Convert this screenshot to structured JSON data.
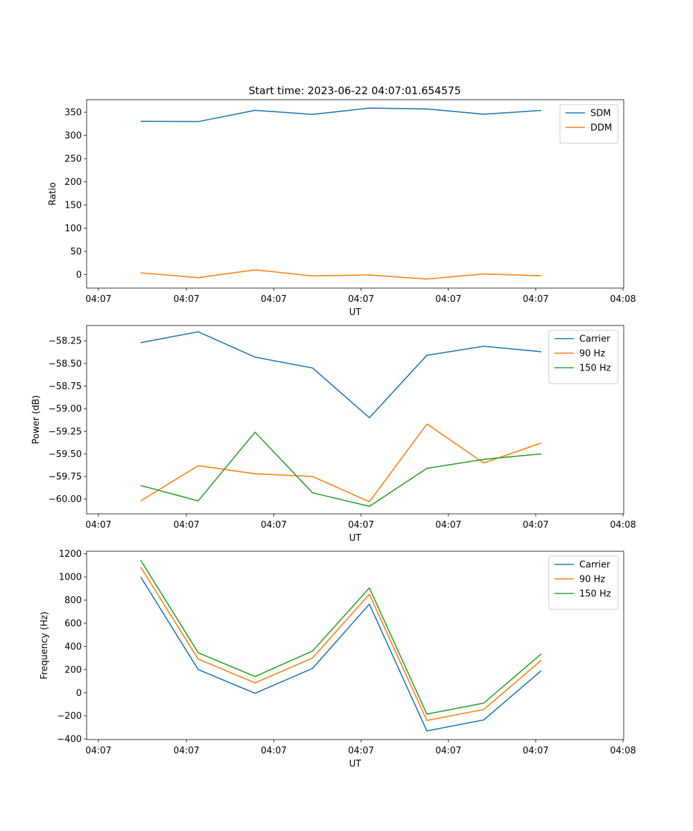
{
  "figure": {
    "title": "Start time: 2023-06-22 04:07:01.654575"
  },
  "colors": {
    "blue": "#1f77b4",
    "orange": "#ff7f0e",
    "green": "#2ca02c"
  },
  "chart_data": [
    {
      "type": "line",
      "title": "Start time: 2023-06-22 04:07:01.654575",
      "xlabel": "UT",
      "ylabel": "Ratio",
      "x_tick_labels": [
        "04:07",
        "04:07",
        "04:07",
        "04:07",
        "04:07",
        "04:07",
        "04:08"
      ],
      "y_ticks": [
        0,
        50,
        100,
        150,
        200,
        250,
        300,
        350
      ],
      "ylim": [
        -29,
        377
      ],
      "legend_position": "top-right",
      "grid": false,
      "series": [
        {
          "name": "SDM",
          "color": "#1f77b4",
          "values": [
            330.5,
            329.8,
            354.2,
            345.4,
            359.0,
            357.2,
            345.8,
            353.8
          ]
        },
        {
          "name": "DDM",
          "color": "#ff7f0e",
          "values": [
            3.8,
            -6.4,
            10.2,
            -2.8,
            -0.8,
            -9.4,
            1.4,
            -2.6
          ]
        }
      ]
    },
    {
      "type": "line",
      "title": "",
      "xlabel": "UT",
      "ylabel": "Power (dB)",
      "x_tick_labels": [
        "04:07",
        "04:07",
        "04:07",
        "04:07",
        "04:07",
        "04:07",
        "04:08"
      ],
      "y_ticks": [
        -60.0,
        -59.75,
        -59.5,
        -59.25,
        -59.0,
        -58.75,
        -58.5,
        -58.25
      ],
      "y_tick_labels": [
        "−60.00",
        "−59.75",
        "−59.50",
        "−59.25",
        "−59.00",
        "−58.75",
        "−58.50",
        "−58.25"
      ],
      "ylim": [
        -60.163,
        -58.08
      ],
      "legend_position": "top-right",
      "grid": false,
      "series": [
        {
          "name": "Carrier",
          "color": "#1f77b4",
          "values": [
            -58.27,
            -58.15,
            -58.43,
            -58.55,
            -59.1,
            -58.41,
            -58.31,
            -58.37
          ]
        },
        {
          "name": "90 Hz",
          "color": "#ff7f0e",
          "values": [
            -60.02,
            -59.63,
            -59.72,
            -59.75,
            -60.03,
            -59.17,
            -59.6,
            -59.38
          ]
        },
        {
          "name": "150 Hz",
          "color": "#2ca02c",
          "values": [
            -59.85,
            -60.02,
            -59.26,
            -59.93,
            -60.08,
            -59.66,
            -59.56,
            -59.5
          ]
        }
      ]
    },
    {
      "type": "line",
      "title": "",
      "xlabel": "UT",
      "ylabel": "Frequency (Hz)",
      "x_tick_labels": [
        "04:07",
        "04:07",
        "04:07",
        "04:07",
        "04:07",
        "04:07",
        "04:08"
      ],
      "y_ticks": [
        -400,
        -200,
        0,
        200,
        400,
        600,
        800,
        1000,
        1200
      ],
      "y_tick_labels": [
        "−400",
        "−200",
        "0",
        "200",
        "400",
        "600",
        "800",
        "1000",
        "1200"
      ],
      "ylim": [
        -405,
        1222
      ],
      "legend_position": "top-right",
      "grid": false,
      "series": [
        {
          "name": "Carrier",
          "color": "#1f77b4",
          "values": [
            1000,
            200,
            -5,
            210,
            765,
            -330,
            -235,
            190
          ]
        },
        {
          "name": "90 Hz",
          "color": "#ff7f0e",
          "values": [
            1085,
            290,
            85,
            300,
            850,
            -240,
            -145,
            280
          ]
        },
        {
          "name": "150 Hz",
          "color": "#2ca02c",
          "values": [
            1145,
            345,
            140,
            360,
            905,
            -185,
            -90,
            335
          ]
        }
      ]
    }
  ]
}
